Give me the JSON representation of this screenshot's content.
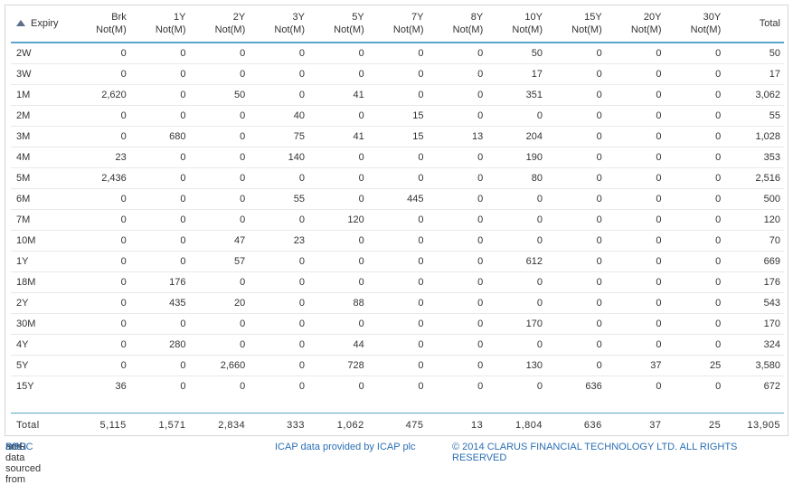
{
  "table": {
    "expiry_label": "Expiry",
    "columns": [
      {
        "l1": "Brk",
        "l2": "Not(M)"
      },
      {
        "l1": "1Y",
        "l2": "Not(M)"
      },
      {
        "l1": "2Y",
        "l2": "Not(M)"
      },
      {
        "l1": "3Y",
        "l2": "Not(M)"
      },
      {
        "l1": "5Y",
        "l2": "Not(M)"
      },
      {
        "l1": "7Y",
        "l2": "Not(M)"
      },
      {
        "l1": "8Y",
        "l2": "Not(M)"
      },
      {
        "l1": "10Y",
        "l2": "Not(M)"
      },
      {
        "l1": "15Y",
        "l2": "Not(M)"
      },
      {
        "l1": "20Y",
        "l2": "Not(M)"
      },
      {
        "l1": "30Y",
        "l2": "Not(M)"
      },
      {
        "l1": "Total",
        "l2": ""
      }
    ],
    "rows": [
      {
        "expiry": "2W",
        "vals": [
          "0",
          "0",
          "0",
          "0",
          "0",
          "0",
          "0",
          "50",
          "0",
          "0",
          "0",
          "50"
        ]
      },
      {
        "expiry": "3W",
        "vals": [
          "0",
          "0",
          "0",
          "0",
          "0",
          "0",
          "0",
          "17",
          "0",
          "0",
          "0",
          "17"
        ]
      },
      {
        "expiry": "1M",
        "vals": [
          "2,620",
          "0",
          "50",
          "0",
          "41",
          "0",
          "0",
          "351",
          "0",
          "0",
          "0",
          "3,062"
        ]
      },
      {
        "expiry": "2M",
        "vals": [
          "0",
          "0",
          "0",
          "40",
          "0",
          "15",
          "0",
          "0",
          "0",
          "0",
          "0",
          "55"
        ]
      },
      {
        "expiry": "3M",
        "vals": [
          "0",
          "680",
          "0",
          "75",
          "41",
          "15",
          "13",
          "204",
          "0",
          "0",
          "0",
          "1,028"
        ]
      },
      {
        "expiry": "4M",
        "vals": [
          "23",
          "0",
          "0",
          "140",
          "0",
          "0",
          "0",
          "190",
          "0",
          "0",
          "0",
          "353"
        ]
      },
      {
        "expiry": "5M",
        "vals": [
          "2,436",
          "0",
          "0",
          "0",
          "0",
          "0",
          "0",
          "80",
          "0",
          "0",
          "0",
          "2,516"
        ]
      },
      {
        "expiry": "6M",
        "vals": [
          "0",
          "0",
          "0",
          "55",
          "0",
          "445",
          "0",
          "0",
          "0",
          "0",
          "0",
          "500"
        ]
      },
      {
        "expiry": "7M",
        "vals": [
          "0",
          "0",
          "0",
          "0",
          "120",
          "0",
          "0",
          "0",
          "0",
          "0",
          "0",
          "120"
        ]
      },
      {
        "expiry": "10M",
        "vals": [
          "0",
          "0",
          "47",
          "23",
          "0",
          "0",
          "0",
          "0",
          "0",
          "0",
          "0",
          "70"
        ]
      },
      {
        "expiry": "1Y",
        "vals": [
          "0",
          "0",
          "57",
          "0",
          "0",
          "0",
          "0",
          "612",
          "0",
          "0",
          "0",
          "669"
        ]
      },
      {
        "expiry": "18M",
        "vals": [
          "0",
          "176",
          "0",
          "0",
          "0",
          "0",
          "0",
          "0",
          "0",
          "0",
          "0",
          "176"
        ]
      },
      {
        "expiry": "2Y",
        "vals": [
          "0",
          "435",
          "20",
          "0",
          "88",
          "0",
          "0",
          "0",
          "0",
          "0",
          "0",
          "543"
        ]
      },
      {
        "expiry": "30M",
        "vals": [
          "0",
          "0",
          "0",
          "0",
          "0",
          "0",
          "0",
          "170",
          "0",
          "0",
          "0",
          "170"
        ]
      },
      {
        "expiry": "4Y",
        "vals": [
          "0",
          "280",
          "0",
          "0",
          "44",
          "0",
          "0",
          "0",
          "0",
          "0",
          "0",
          "324"
        ]
      },
      {
        "expiry": "5Y",
        "vals": [
          "0",
          "0",
          "2,660",
          "0",
          "728",
          "0",
          "0",
          "130",
          "0",
          "37",
          "25",
          "3,580"
        ]
      },
      {
        "expiry": "15Y",
        "vals": [
          "36",
          "0",
          "0",
          "0",
          "0",
          "0",
          "0",
          "0",
          "636",
          "0",
          "0",
          "672"
        ]
      }
    ],
    "totals": {
      "label": "Total",
      "vals": [
        "5,115",
        "1,571",
        "2,834",
        "333",
        "1,062",
        "475",
        "13",
        "1,804",
        "636",
        "37",
        "25",
        "13,905"
      ]
    }
  },
  "footer": {
    "sdr_prefix": "SDR data sourced from ",
    "dtcc": "DTCC",
    "and": " and ",
    "bbg": "BBG",
    "icap": "ICAP data provided by ICAP plc",
    "copyright": "© 2014 CLARUS FINANCIAL TECHNOLOGY LTD. ALL RIGHTS RESERVED"
  },
  "colors": {
    "accent_rule": "#5aa6c8",
    "link": "#2a6fb4",
    "sort_icon": "#5a6f88"
  }
}
